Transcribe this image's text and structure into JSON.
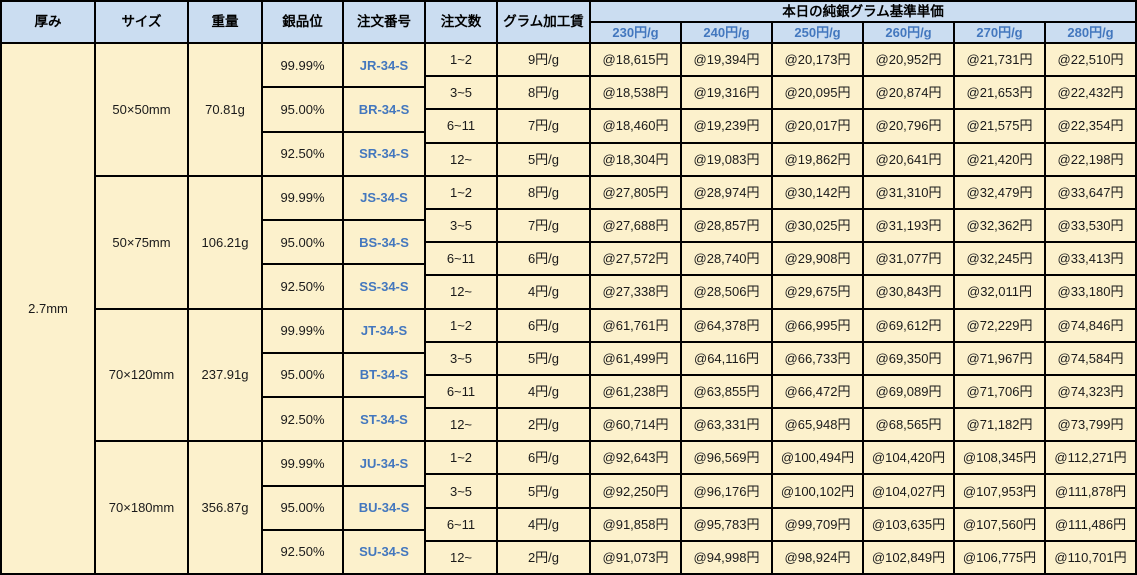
{
  "header": {
    "columns": [
      "厚み",
      "サイズ",
      "重量",
      "銀品位",
      "注文番号",
      "注文数",
      "グラム加工賃"
    ],
    "price_group_title": "本日の純銀グラム基準単価",
    "price_tiers": [
      "230円/g",
      "240円/g",
      "250円/g",
      "260円/g",
      "270円/g",
      "280円/g"
    ]
  },
  "thickness": "2.7mm",
  "colors": {
    "header_bg": "#CBDDF1",
    "body_bg": "#FCF1CC",
    "accent_blue_text": "#4377BE",
    "grid_line": "#000000"
  },
  "blocks": [
    {
      "size": "50×50mm",
      "weight": "70.81g",
      "purities": [
        {
          "purity": "99.99%",
          "order_no": "JR-34-S"
        },
        {
          "purity": "95.00%",
          "order_no": "BR-34-S"
        },
        {
          "purity": "92.50%",
          "order_no": "SR-34-S"
        }
      ],
      "rows": [
        {
          "qty": "1~2",
          "fee": "9円/g",
          "prices": [
            "@18,615円",
            "@19,394円",
            "@20,173円",
            "@20,952円",
            "@21,731円",
            "@22,510円"
          ]
        },
        {
          "qty": "3~5",
          "fee": "8円/g",
          "prices": [
            "@18,538円",
            "@19,316円",
            "@20,095円",
            "@20,874円",
            "@21,653円",
            "@22,432円"
          ]
        },
        {
          "qty": "6~11",
          "fee": "7円/g",
          "prices": [
            "@18,460円",
            "@19,239円",
            "@20,017円",
            "@20,796円",
            "@21,575円",
            "@22,354円"
          ]
        },
        {
          "qty": "12~",
          "fee": "5円/g",
          "prices": [
            "@18,304円",
            "@19,083円",
            "@19,862円",
            "@20,641円",
            "@21,420円",
            "@22,198円"
          ]
        }
      ]
    },
    {
      "size": "50×75mm",
      "weight": "106.21g",
      "purities": [
        {
          "purity": "99.99%",
          "order_no": "JS-34-S"
        },
        {
          "purity": "95.00%",
          "order_no": "BS-34-S"
        },
        {
          "purity": "92.50%",
          "order_no": "SS-34-S"
        }
      ],
      "rows": [
        {
          "qty": "1~2",
          "fee": "8円/g",
          "prices": [
            "@27,805円",
            "@28,974円",
            "@30,142円",
            "@31,310円",
            "@32,479円",
            "@33,647円"
          ]
        },
        {
          "qty": "3~5",
          "fee": "7円/g",
          "prices": [
            "@27,688円",
            "@28,857円",
            "@30,025円",
            "@31,193円",
            "@32,362円",
            "@33,530円"
          ]
        },
        {
          "qty": "6~11",
          "fee": "6円/g",
          "prices": [
            "@27,572円",
            "@28,740円",
            "@29,908円",
            "@31,077円",
            "@32,245円",
            "@33,413円"
          ]
        },
        {
          "qty": "12~",
          "fee": "4円/g",
          "prices": [
            "@27,338円",
            "@28,506円",
            "@29,675円",
            "@30,843円",
            "@32,011円",
            "@33,180円"
          ]
        }
      ]
    },
    {
      "size": "70×120mm",
      "weight": "237.91g",
      "purities": [
        {
          "purity": "99.99%",
          "order_no": "JT-34-S"
        },
        {
          "purity": "95.00%",
          "order_no": "BT-34-S"
        },
        {
          "purity": "92.50%",
          "order_no": "ST-34-S"
        }
      ],
      "rows": [
        {
          "qty": "1~2",
          "fee": "6円/g",
          "prices": [
            "@61,761円",
            "@64,378円",
            "@66,995円",
            "@69,612円",
            "@72,229円",
            "@74,846円"
          ]
        },
        {
          "qty": "3~5",
          "fee": "5円/g",
          "prices": [
            "@61,499円",
            "@64,116円",
            "@66,733円",
            "@69,350円",
            "@71,967円",
            "@74,584円"
          ]
        },
        {
          "qty": "6~11",
          "fee": "4円/g",
          "prices": [
            "@61,238円",
            "@63,855円",
            "@66,472円",
            "@69,089円",
            "@71,706円",
            "@74,323円"
          ]
        },
        {
          "qty": "12~",
          "fee": "2円/g",
          "prices": [
            "@60,714円",
            "@63,331円",
            "@65,948円",
            "@68,565円",
            "@71,182円",
            "@73,799円"
          ]
        }
      ]
    },
    {
      "size": "70×180mm",
      "weight": "356.87g",
      "purities": [
        {
          "purity": "99.99%",
          "order_no": "JU-34-S"
        },
        {
          "purity": "95.00%",
          "order_no": "BU-34-S"
        },
        {
          "purity": "92.50%",
          "order_no": "SU-34-S"
        }
      ],
      "rows": [
        {
          "qty": "1~2",
          "fee": "6円/g",
          "prices": [
            "@92,643円",
            "@96,569円",
            "@100,494円",
            "@104,420円",
            "@108,345円",
            "@112,271円"
          ]
        },
        {
          "qty": "3~5",
          "fee": "5円/g",
          "prices": [
            "@92,250円",
            "@96,176円",
            "@100,102円",
            "@104,027円",
            "@107,953円",
            "@111,878円"
          ]
        },
        {
          "qty": "6~11",
          "fee": "4円/g",
          "prices": [
            "@91,858円",
            "@95,783円",
            "@99,709円",
            "@103,635円",
            "@107,560円",
            "@111,486円"
          ]
        },
        {
          "qty": "12~",
          "fee": "2円/g",
          "prices": [
            "@91,073円",
            "@94,998円",
            "@98,924円",
            "@102,849円",
            "@106,775円",
            "@110,701円"
          ]
        }
      ]
    }
  ]
}
